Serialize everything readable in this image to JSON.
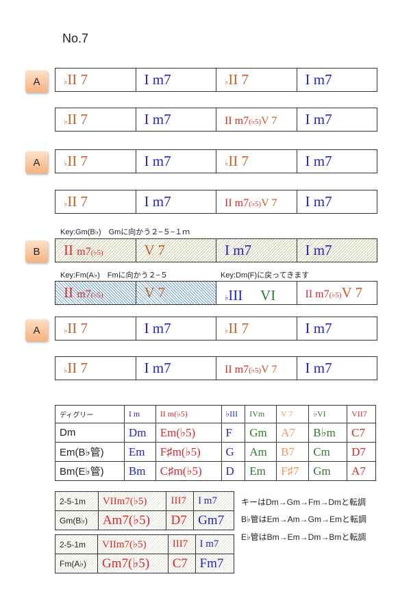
{
  "title": "No.7",
  "colors": {
    "orange": "#c0622a",
    "blue": "#2424c0",
    "red": "#d42a2a",
    "green": "#2f7a2f",
    "lightorange": "#e89a60",
    "black": "#222222"
  },
  "sections": [
    {
      "badge": "A",
      "rows": [
        [
          [
            [
              "♭",
              "orange",
              "sm"
            ],
            [
              "II 7",
              "orange"
            ]
          ],
          [
            [
              "I m7",
              "blue"
            ]
          ],
          [
            [
              "♭",
              "orange",
              "sm"
            ],
            [
              "II 7",
              "orange"
            ]
          ],
          [
            [
              "I m7",
              "blue"
            ]
          ]
        ],
        [
          [
            [
              "♭",
              "orange",
              "sm"
            ],
            [
              "II 7",
              "orange"
            ]
          ],
          [
            [
              "I m7",
              "blue"
            ]
          ],
          [
            [
              "II ",
              "red",
              "md"
            ],
            [
              "m7",
              "red",
              "md"
            ],
            [
              "(♭5)",
              "red",
              "sm"
            ],
            [
              "V 7",
              "orange",
              "md"
            ]
          ],
          [
            [
              "I m7",
              "blue"
            ]
          ]
        ]
      ]
    },
    {
      "badge": "A",
      "rows": [
        [
          [
            [
              "♭",
              "orange",
              "sm"
            ],
            [
              "II 7",
              "orange"
            ]
          ],
          [
            [
              "I m7",
              "blue"
            ]
          ],
          [
            [
              "♭",
              "orange",
              "sm"
            ],
            [
              "II 7",
              "orange"
            ]
          ],
          [
            [
              "I m7",
              "blue"
            ]
          ]
        ],
        [
          [
            [
              "♭",
              "orange",
              "sm"
            ],
            [
              "II 7",
              "orange"
            ]
          ],
          [
            [
              "I m7",
              "blue"
            ]
          ],
          [
            [
              "II ",
              "red",
              "md"
            ],
            [
              "m7",
              "red",
              "md"
            ],
            [
              "(♭5)",
              "red",
              "sm"
            ],
            [
              "V 7",
              "orange",
              "md"
            ]
          ],
          [
            [
              "I m7",
              "blue"
            ]
          ]
        ]
      ]
    },
    {
      "badge": "B",
      "notes1": [
        "Key:Gm(B♭)　Gmに向かう２−５−１ｍ"
      ],
      "notes2": [
        "Key:Fm(A♭)　Fmに向かう２−５",
        "Key:Dm(F)に戻ってきます"
      ],
      "rows": [
        [
          [
            [
              "II ",
              "red"
            ],
            [
              "m7",
              "red",
              "md"
            ],
            [
              "(♭5)",
              "red",
              "sm"
            ]
          ],
          [
            [
              "V 7",
              "orange"
            ]
          ],
          [
            [
              "I m7",
              "blue"
            ]
          ],
          [
            [
              "I m7",
              "blue"
            ]
          ]
        ],
        [
          [
            [
              "II ",
              "red"
            ],
            [
              "m7",
              "red",
              "md"
            ],
            [
              "(♭5)",
              "red",
              "sm"
            ]
          ],
          [
            [
              "V 7",
              "orange"
            ]
          ],
          [
            [
              "♭",
              "blue",
              "sm"
            ],
            [
              "III",
              "blue"
            ],
            [
              "　 VI",
              "green"
            ]
          ],
          [
            [
              "II ",
              "red",
              "md"
            ],
            [
              "m7",
              "red",
              "md"
            ],
            [
              "(♭5)",
              "red",
              "sm"
            ],
            [
              "V 7",
              "orange"
            ]
          ]
        ]
      ]
    },
    {
      "badge": "A",
      "rows": [
        [
          [
            [
              "♭",
              "orange",
              "sm"
            ],
            [
              "II 7",
              "orange"
            ]
          ],
          [
            [
              "I m7",
              "blue"
            ]
          ],
          [
            [
              "♭",
              "orange",
              "sm"
            ],
            [
              "II 7",
              "orange"
            ]
          ],
          [
            [
              "I m7",
              "blue"
            ]
          ]
        ],
        [
          [
            [
              "♭",
              "orange",
              "sm"
            ],
            [
              "II 7",
              "orange"
            ]
          ],
          [
            [
              "I m7",
              "blue"
            ]
          ],
          [
            [
              "II ",
              "red",
              "md"
            ],
            [
              "m7",
              "red",
              "md"
            ],
            [
              "(♭5)",
              "red",
              "sm"
            ],
            [
              "V 7",
              "orange",
              "md"
            ]
          ],
          [
            [
              "I m7",
              "blue"
            ]
          ]
        ]
      ]
    }
  ],
  "degree_table": {
    "header": [
      "ディグリー",
      "I m",
      "II m(♭5)",
      "♭III",
      "IVm",
      "V 7",
      "♭VI",
      "VII7"
    ],
    "header_colors": [
      "black",
      "blue",
      "red",
      "blue",
      "green",
      "lightorange",
      "green",
      "red"
    ],
    "rows": [
      [
        "Dm",
        "Dm",
        "Em(♭5)",
        "F",
        "Gm",
        "A7",
        "B♭m",
        "C7"
      ],
      [
        "Em(B♭管)",
        "Em",
        "F♯m(♭5)",
        "G",
        "Am",
        "B7",
        "Cm",
        "D7"
      ],
      [
        "Bm(E♭管)",
        "Bm",
        "C♯m(♭5)",
        "D",
        "Em",
        "F♯7",
        "Gm",
        "A7"
      ]
    ]
  },
  "two_five_one": [
    {
      "rows": [
        [
          "2-5-1m",
          "VIIm7(♭5)",
          "III7",
          "I m7"
        ],
        [
          "Gm(B♭)",
          "Am7(♭5)",
          "D7",
          "Gm7"
        ]
      ]
    },
    {
      "rows": [
        [
          "2-5-1m",
          "VIIm7(♭5)",
          "III7",
          "I m7"
        ],
        [
          "Fm(A♭)",
          "Gm7(♭5)",
          "C7",
          "Fm7"
        ]
      ]
    }
  ],
  "two_five_one_colors": [
    "black",
    "red",
    "red",
    "blue"
  ],
  "modulation_notes": [
    "キーはDm→Gm→Fm→Dmと転調",
    "B♭管はEm→Am→Gm→Emと転調",
    "E♭管はBm→Em→Dm→Bmと転調"
  ]
}
